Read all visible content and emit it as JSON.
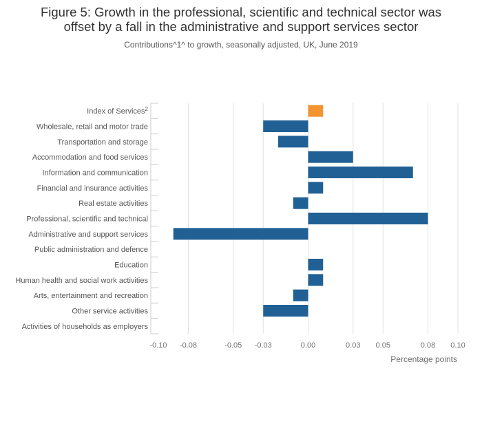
{
  "chart_data": {
    "type": "bar",
    "orientation": "horizontal",
    "title_lines": [
      "Figure 5: Growth in the professional, scientific and technical sector was",
      "offset by a fall in the administrative and support services sector"
    ],
    "subtitle": "Contributions^1^ to growth, seasonally adjusted, UK, June 2019",
    "xlabel": "Percentage points",
    "ylabel": "",
    "xlim": [
      -0.1,
      0.1
    ],
    "x_ticks": [
      -0.1,
      -0.08,
      -0.05,
      -0.03,
      0.0,
      0.03,
      0.05,
      0.08,
      0.1
    ],
    "x_tick_labels": [
      "-0.10",
      "-0.08",
      "-0.05",
      "-0.03",
      "0.00",
      "0.03",
      "0.05",
      "0.08",
      "0.10"
    ],
    "grid": true,
    "categories": [
      "Index of Services",
      "Wholesale, retail and motor trade",
      "Transportation and storage",
      "Accommodation and food services",
      "Information and communication",
      "Financial and insurance activities",
      "Real estate activities",
      "Professional, scientific and technical",
      "Administrative and support services",
      "Public administration and defence",
      "Education",
      "Human health and social work activities",
      "Arts, entertainment and recreation",
      "Other service activities",
      "Activities of households as employers"
    ],
    "category_superscripts": [
      "2",
      "",
      "",
      "",
      "",
      "",
      "",
      "",
      "",
      "",
      "",
      "",
      "",
      "",
      ""
    ],
    "values": [
      0.01,
      -0.03,
      -0.02,
      0.03,
      0.07,
      0.01,
      -0.01,
      0.08,
      -0.09,
      0.0,
      0.01,
      0.01,
      -0.01,
      -0.03,
      0.0
    ],
    "highlight_index": 0,
    "colors": {
      "highlight": "#F39431",
      "bar": "#206095",
      "grid": "#e0e0e0",
      "axis_text": "#707071",
      "label_text": "#555555"
    }
  }
}
